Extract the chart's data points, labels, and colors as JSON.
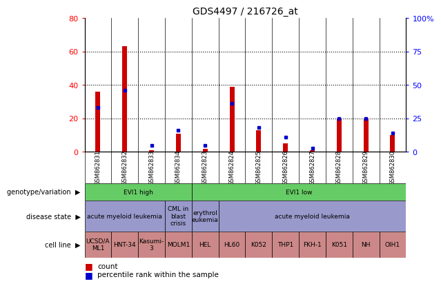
{
  "title": "GDS4497 / 216726_at",
  "samples": [
    "GSM862831",
    "GSM862832",
    "GSM862833",
    "GSM862834",
    "GSM862823",
    "GSM862824",
    "GSM862825",
    "GSM862826",
    "GSM862827",
    "GSM862828",
    "GSM862829",
    "GSM862830"
  ],
  "count_values": [
    36,
    63,
    1,
    11,
    2,
    39,
    13,
    5,
    1,
    20,
    20,
    10
  ],
  "percentile_values": [
    33,
    46,
    5,
    16,
    5,
    36,
    18,
    11,
    3,
    25,
    25,
    14
  ],
  "ylim_left": [
    0,
    80
  ],
  "ylim_right": [
    0,
    100
  ],
  "yticks_left": [
    0,
    20,
    40,
    60,
    80
  ],
  "ytick_labels_left": [
    "0",
    "20",
    "40",
    "60",
    "80"
  ],
  "yticks_right": [
    0,
    25,
    50,
    75,
    100
  ],
  "ytick_labels_right": [
    "0",
    "25",
    "50",
    "75",
    "100%"
  ],
  "bar_color": "#cc0000",
  "percentile_color": "#0000cc",
  "plot_bg": "#ffffff",
  "col_bg": "#cccccc",
  "genotype_colors": [
    "#66cc66",
    "#66cc66"
  ],
  "disease_color": "#9999cc",
  "cell_color": "#cc8888",
  "genotype_row": {
    "label": "genotype/variation",
    "groups": [
      {
        "text": "EVI1 high",
        "start": 0,
        "end": 4,
        "color": "#66cc66"
      },
      {
        "text": "EVI1 low",
        "start": 4,
        "end": 12,
        "color": "#66cc66"
      }
    ]
  },
  "disease_row": {
    "label": "disease state",
    "groups": [
      {
        "text": "acute myeloid leukemia",
        "start": 0,
        "end": 3,
        "color": "#9999cc"
      },
      {
        "text": "CML in\nblast\ncrisis",
        "start": 3,
        "end": 4,
        "color": "#9999cc"
      },
      {
        "text": "erythrol\neukemia",
        "start": 4,
        "end": 5,
        "color": "#9999cc"
      },
      {
        "text": "acute myeloid leukemia",
        "start": 5,
        "end": 12,
        "color": "#9999cc"
      }
    ]
  },
  "cell_row": {
    "label": "cell line",
    "cells": [
      {
        "text": "UCSD/A\nML1"
      },
      {
        "text": "HNT-34"
      },
      {
        "text": "Kasumi-\n3"
      },
      {
        "text": "MOLM1"
      },
      {
        "text": "HEL"
      },
      {
        "text": "HL60"
      },
      {
        "text": "K052"
      },
      {
        "text": "THP1"
      },
      {
        "text": "FKH-1"
      },
      {
        "text": "K051"
      },
      {
        "text": "NH"
      },
      {
        "text": "OIH1"
      }
    ]
  }
}
